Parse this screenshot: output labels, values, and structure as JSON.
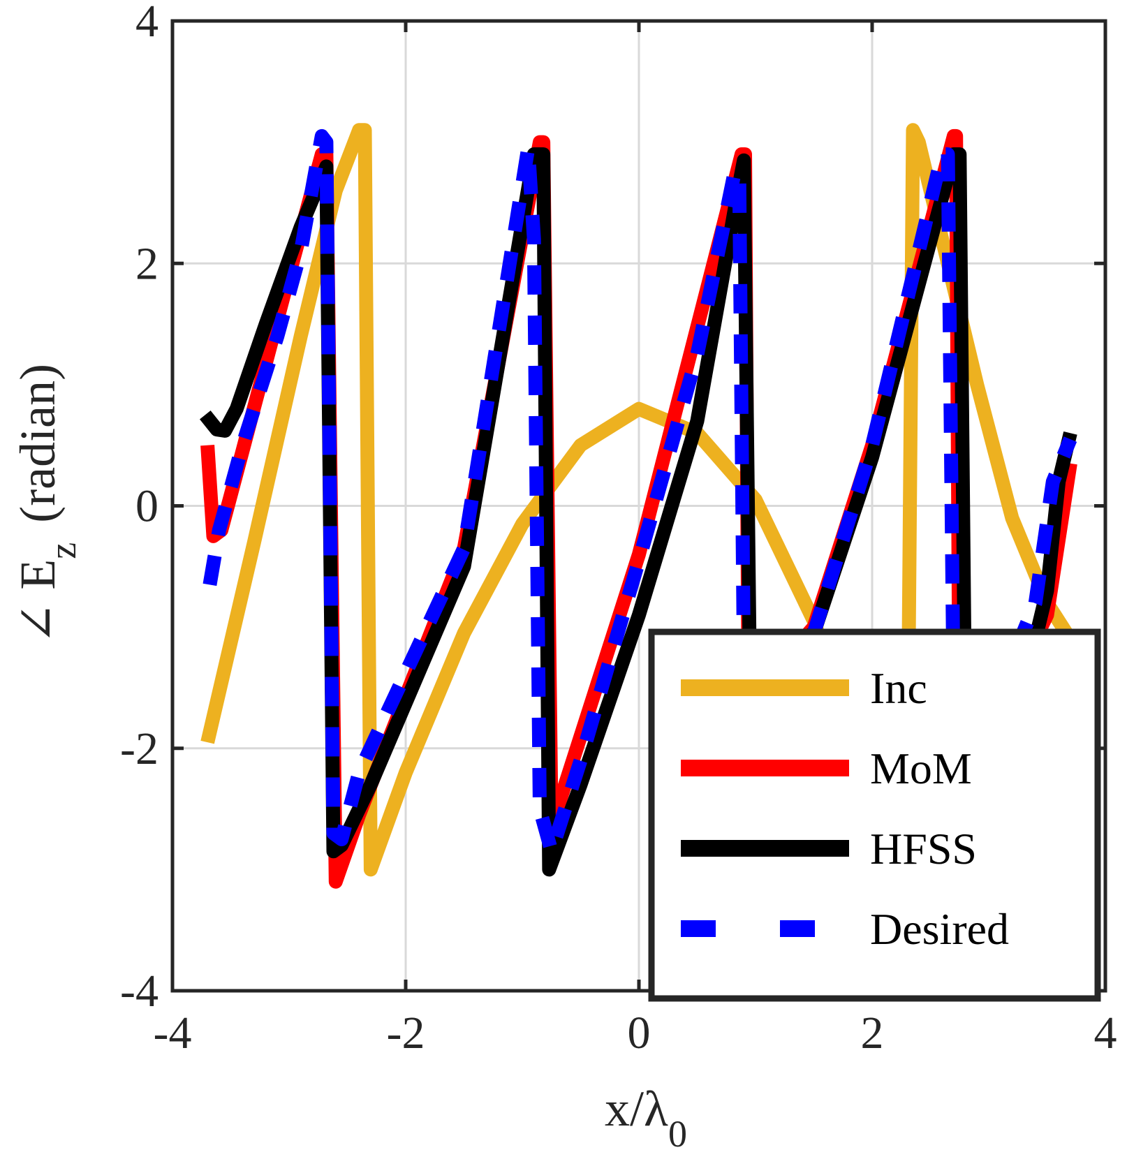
{
  "chart_data": {
    "type": "line",
    "title": "",
    "xlabel": "x/λ0",
    "xlabel_main": "x/λ",
    "xlabel_sub": "0",
    "ylabel": "∠ Ez (radian)",
    "ylabel_prefix": "∠ E",
    "ylabel_sub": "z",
    "ylabel_suffix": "(radian)",
    "xlim": [
      -4,
      4
    ],
    "ylim": [
      -4,
      4
    ],
    "xticks": [
      -4,
      -2,
      0,
      2,
      4
    ],
    "xtick_labels": [
      "-4",
      "-2",
      "0",
      "2",
      "4"
    ],
    "yticks": [
      -4,
      -2,
      0,
      2,
      4
    ],
    "ytick_labels": [
      "-4",
      "-2",
      "0",
      "2",
      "4"
    ],
    "grid": true,
    "legend_position": "bottom-right",
    "series": [
      {
        "name": "Inc",
        "color": "#EDB120",
        "style": "solid",
        "x": [
          -3.7,
          -3.3,
          -2.9,
          -2.6,
          -2.4,
          -2.35,
          -2.3,
          -2.0,
          -1.5,
          -1.0,
          -0.5,
          0.0,
          0.5,
          1.0,
          1.5,
          1.8,
          2.0,
          2.3,
          2.35,
          2.4,
          2.6,
          2.9,
          3.2,
          3.5,
          3.7
        ],
        "y": [
          -1.95,
          -0.3,
          1.4,
          2.6,
          3.1,
          3.1,
          -3.0,
          -2.2,
          -1.05,
          -0.15,
          0.5,
          0.8,
          0.6,
          0.05,
          -0.95,
          -1.8,
          -2.4,
          -2.8,
          3.1,
          3.0,
          2.2,
          1.0,
          -0.1,
          -0.8,
          -1.1
        ]
      },
      {
        "name": "MoM",
        "color": "#FF0000",
        "style": "solid",
        "x": [
          -3.7,
          -3.65,
          -3.58,
          -3.4,
          -3.0,
          -2.72,
          -2.68,
          -2.6,
          -2.4,
          -1.5,
          -0.85,
          -0.82,
          -0.75,
          0.0,
          0.88,
          0.91,
          0.94,
          1.5,
          2.0,
          2.7,
          2.72,
          2.75,
          3.2,
          3.5,
          3.7
        ],
        "y": [
          0.5,
          -0.25,
          -0.2,
          0.45,
          1.9,
          2.9,
          2.9,
          -3.1,
          -2.55,
          -0.35,
          3.0,
          3.0,
          -2.65,
          -0.4,
          2.9,
          2.9,
          -1.6,
          -1.0,
          0.5,
          3.05,
          3.05,
          -2.1,
          -1.5,
          -0.9,
          0.35
        ]
      },
      {
        "name": "HFSS",
        "color": "#000000",
        "style": "solid",
        "x": [
          -3.72,
          -3.62,
          -3.55,
          -3.45,
          -3.2,
          -2.9,
          -2.68,
          -2.62,
          -2.55,
          -2.3,
          -1.5,
          -0.9,
          -0.82,
          -0.77,
          -0.5,
          0.0,
          0.5,
          0.85,
          0.9,
          0.95,
          1.5,
          2.0,
          2.7,
          2.75,
          2.8,
          3.1,
          3.4,
          3.5,
          3.6,
          3.7
        ],
        "y": [
          0.75,
          0.63,
          0.62,
          0.8,
          1.5,
          2.3,
          2.8,
          -2.85,
          -2.8,
          -2.3,
          -0.5,
          2.9,
          2.9,
          -3.0,
          -2.3,
          -0.9,
          0.7,
          2.6,
          2.85,
          -1.3,
          -1.05,
          0.4,
          2.9,
          2.9,
          -2.0,
          -1.6,
          -1.1,
          -0.7,
          0.2,
          0.6
        ]
      },
      {
        "name": "Desired",
        "color": "#0000FF",
        "style": "dashed",
        "x": [
          -3.68,
          -3.6,
          -3.4,
          -3.1,
          -2.9,
          -2.72,
          -2.68,
          -2.62,
          -2.55,
          -2.4,
          -1.5,
          -0.95,
          -0.9,
          -0.85,
          -0.75,
          -0.5,
          0.0,
          0.5,
          0.82,
          0.86,
          0.9,
          1.5,
          2.0,
          2.6,
          2.65,
          2.7,
          3.1,
          3.4,
          3.55,
          3.7
        ],
        "y": [
          -0.65,
          -0.2,
          0.5,
          1.4,
          2.1,
          3.05,
          3.0,
          -2.7,
          -2.75,
          -2.2,
          -0.35,
          2.95,
          2.2,
          -2.5,
          -2.85,
          -2.1,
          -0.45,
          1.25,
          2.75,
          2.75,
          -1.3,
          -1.05,
          0.5,
          2.9,
          2.9,
          -1.7,
          -1.5,
          -0.8,
          0.2,
          0.55
        ]
      }
    ]
  }
}
